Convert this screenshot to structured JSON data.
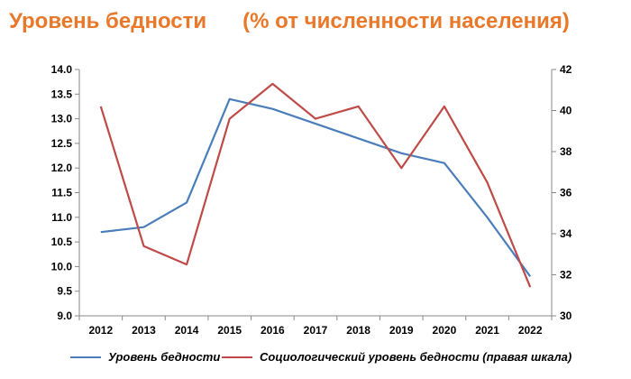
{
  "title": "Уровень бедности      (% от численности населения)",
  "colors": {
    "title": "#E8782A",
    "series1": "#4A7EBB",
    "series2": "#BE4B48"
  },
  "chart_data": {
    "type": "line",
    "title": "Уровень бедности      (% от численности населения)",
    "categories": [
      "2012",
      "2013",
      "2014",
      "2015",
      "2016",
      "2017",
      "2018",
      "2019",
      "2020",
      "2021",
      "2022"
    ],
    "y_left": {
      "ylim": [
        9.0,
        14.0
      ],
      "ticks": [
        "9.0",
        "9.5",
        "10.0",
        "10.5",
        "11.0",
        "11.5",
        "12.0",
        "12.5",
        "13.0",
        "13.5",
        "14.0"
      ]
    },
    "y_right": {
      "ylim": [
        30,
        42
      ],
      "ticks": [
        "30",
        "32",
        "34",
        "36",
        "38",
        "40",
        "42"
      ]
    },
    "grid": false,
    "legend_position": "bottom",
    "series": [
      {
        "name": "Уровень бедности",
        "axis": "left",
        "color": "#4A7EBB",
        "values": [
          10.7,
          10.8,
          11.3,
          13.4,
          13.2,
          12.9,
          12.6,
          12.3,
          12.1,
          11.0,
          9.8
        ]
      },
      {
        "name": "Социологический уровень бедности (правая шкала)",
        "axis": "right",
        "color": "#BE4B48",
        "values": [
          40.2,
          33.4,
          32.5,
          39.6,
          41.3,
          39.6,
          40.2,
          37.2,
          40.2,
          36.5,
          31.4
        ]
      }
    ]
  }
}
